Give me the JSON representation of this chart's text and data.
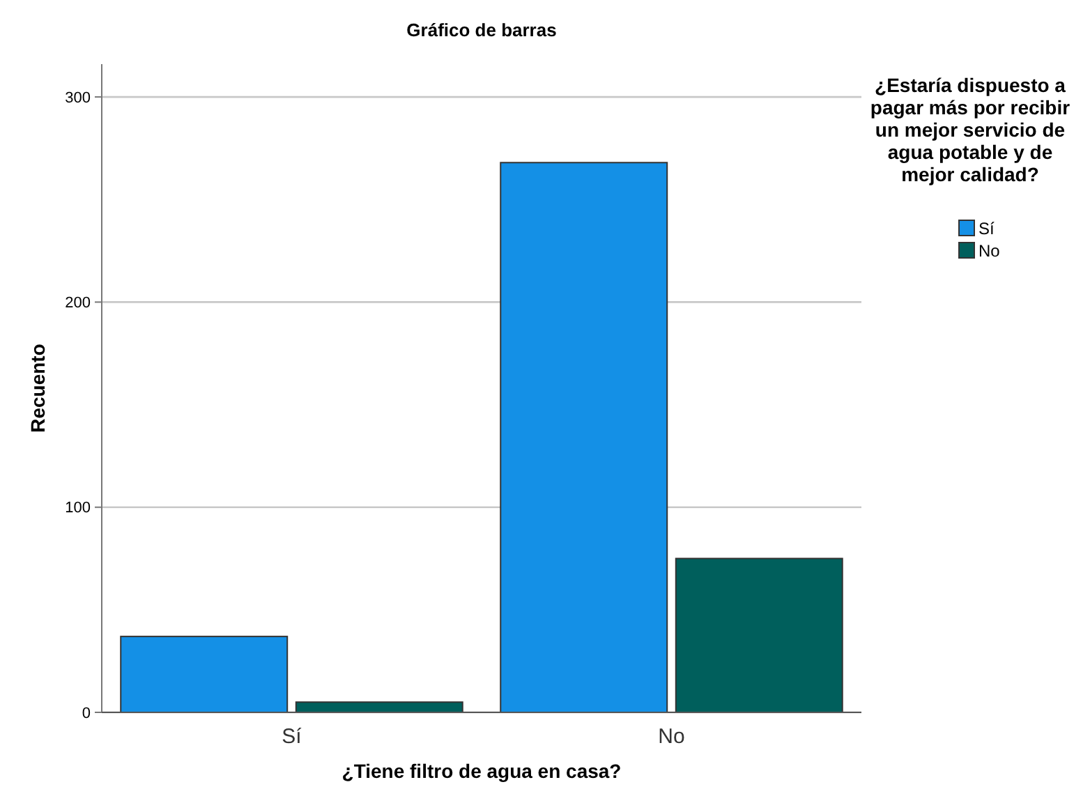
{
  "chart_data": {
    "type": "bar",
    "title": "Gráfico de barras",
    "xlabel": "¿Tiene filtro de agua en casa?",
    "ylabel": "Recuento",
    "legend_title": "¿Estaría dispuesto a pagar más por recibir un mejor servicio de agua potable y de mejor calidad?",
    "categories": [
      "Sí",
      "No"
    ],
    "series": [
      {
        "name": "Sí",
        "color": "#1490e6",
        "values": [
          37,
          268
        ]
      },
      {
        "name": "No",
        "color": "#005f5c",
        "values": [
          5,
          75
        ]
      }
    ],
    "ylim": [
      0,
      316
    ],
    "yticks": [
      0,
      100,
      200,
      300
    ],
    "grid": "y",
    "legend": "top right"
  }
}
